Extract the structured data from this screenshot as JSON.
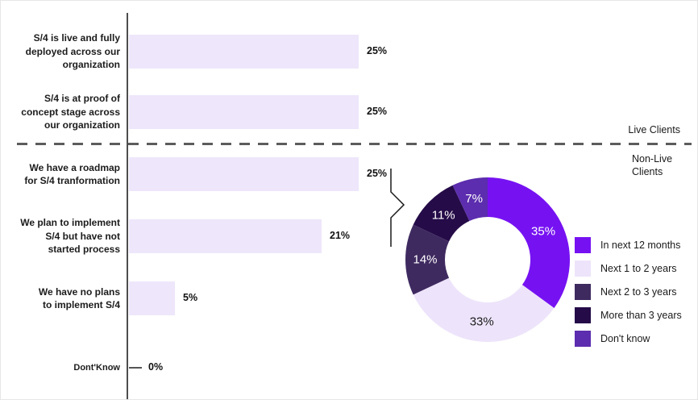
{
  "colors": {
    "bar_fill": "#EEE6FA",
    "axis_gray": "#4D4D4D",
    "divider_gray": "#5C5C5C",
    "text_dark": "#1A1A1A",
    "accent_purple": "#7612F2",
    "light_lavender": "#EDE4FB",
    "dark_slate_purple": "#3F2A60",
    "darkest_purple": "#250B48",
    "medium_purple": "#5C2DAE"
  },
  "annotations": {
    "live_clients_label": "Live Clients",
    "non_live_clients_label": "Non-Live\nClients"
  },
  "chart_data": [
    {
      "type": "bar",
      "orientation": "horizontal",
      "title": "",
      "xlabel": "",
      "ylabel": "",
      "grid": false,
      "categories": [
        "S/4 is live and fully\ndeployed across our\norganization",
        "S/4 is at proof of\nconcept stage across\nour organization",
        "We have a roadmap\nfor S/4 tranformation",
        "We plan to implement\nS/4 but have not\nstarted process",
        "We have no plans\nto implement S/4",
        "Dont'Know"
      ],
      "values": [
        25,
        25,
        25,
        21,
        5,
        0
      ],
      "value_labels": [
        "25%",
        "25%",
        "25%",
        "21%",
        "5%",
        "0%"
      ],
      "bar_color": "#EEE6FA",
      "xlim": [
        0,
        62
      ]
    },
    {
      "type": "pie",
      "subtype": "donut",
      "title": "",
      "legend_position": "right",
      "labels": [
        "In next 12 months",
        "Next 1 to 2 years",
        "Next 2 to 3 years",
        "More than 3 years",
        "Don't know"
      ],
      "values": [
        35,
        33,
        14,
        11,
        7
      ],
      "value_labels": [
        "35%",
        "33%",
        "14%",
        "11%",
        "7%"
      ],
      "colors": [
        "#7612F2",
        "#EDE4FB",
        "#3F2A60",
        "#250B48",
        "#5C2DAE"
      ],
      "label_text_colors": [
        "#FFFFFF",
        "#1A1A1A",
        "#FFFFFF",
        "#FFFFFF",
        "#FFFFFF"
      ]
    }
  ]
}
